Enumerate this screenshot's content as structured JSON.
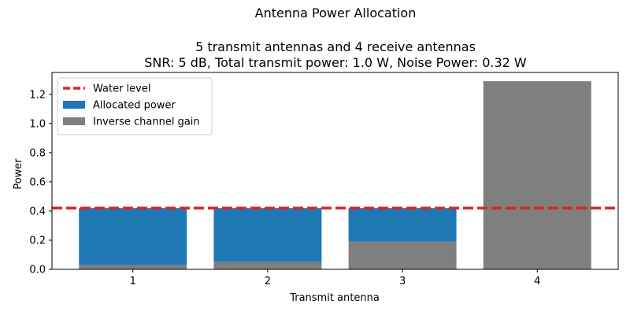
{
  "chart_data": {
    "type": "bar",
    "title_lines": [
      "Antenna Power Allocation",
      "",
      "5 transmit antennas and 4 receive antennas",
      "SNR: 5 dB, Total transmit power: 1.0 W, Noise Power: 0.32 W"
    ],
    "xlabel": "Transmit antenna",
    "ylabel": "Power",
    "categories": [
      "1",
      "2",
      "3",
      "4"
    ],
    "series": [
      {
        "name": "Inverse channel gain",
        "values": [
          0.03,
          0.05,
          0.19,
          1.29
        ],
        "color": "#7f7f7f"
      },
      {
        "name": "Allocated power",
        "values": [
          0.39,
          0.37,
          0.23,
          0.0
        ],
        "color": "#1f77b4"
      }
    ],
    "water_level": {
      "name": "Water level",
      "value": 0.42,
      "color": "#d62728"
    },
    "ylim": [
      0,
      1.35
    ],
    "yticks": [
      0.0,
      0.2,
      0.4,
      0.6,
      0.8,
      1.0,
      1.2
    ],
    "ytick_labels": [
      "0.0",
      "0.2",
      "0.4",
      "0.6",
      "0.8",
      "1.0",
      "1.2"
    ],
    "legend_position": "upper-left",
    "legend_order": [
      "Water level",
      "Allocated power",
      "Inverse channel gain"
    ],
    "grid": false
  }
}
